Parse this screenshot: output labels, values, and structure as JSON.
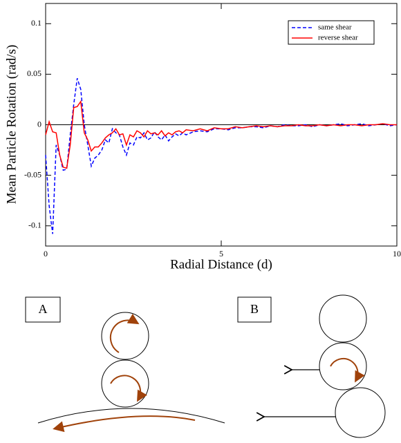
{
  "chart_data": {
    "type": "line",
    "xlabel": "Radial Distance (d)",
    "ylabel": "Mean Particle Rotation (rad/s)",
    "x": [
      0,
      0.1,
      0.2,
      0.3,
      0.4,
      0.5,
      0.6,
      0.7,
      0.8,
      0.9,
      1,
      1.1,
      1.2,
      1.3,
      1.4,
      1.5,
      1.6,
      1.7,
      1.8,
      1.9,
      2,
      2.1,
      2.2,
      2.3,
      2.4,
      2.5,
      2.6,
      2.7,
      2.8,
      2.9,
      3,
      3.1,
      3.2,
      3.3,
      3.4,
      3.5,
      3.6,
      3.7,
      3.8,
      3.9,
      4,
      4.2,
      4.4,
      4.6,
      4.8,
      5,
      5.2,
      5.4,
      5.6,
      5.8,
      6,
      6.2,
      6.4,
      6.6,
      6.8,
      7,
      7.2,
      7.4,
      7.6,
      7.8,
      8,
      8.2,
      8.4,
      8.6,
      8.8,
      9,
      9.2,
      9.4,
      9.6,
      9.8,
      10
    ],
    "series": [
      {
        "name": "same shear",
        "color": "#0000ff",
        "linestyle": "dashed",
        "values": [
          -0.03,
          -0.08,
          -0.108,
          -0.02,
          -0.03,
          -0.045,
          -0.044,
          -0.01,
          0.02,
          0.046,
          0.035,
          0,
          -0.02,
          -0.041,
          -0.033,
          -0.03,
          -0.025,
          -0.015,
          -0.018,
          -0.004,
          -0.008,
          -0.01,
          -0.022,
          -0.03,
          -0.018,
          -0.02,
          -0.012,
          -0.013,
          -0.008,
          -0.015,
          -0.013,
          -0.007,
          -0.012,
          -0.015,
          -0.01,
          -0.016,
          -0.012,
          -0.009,
          -0.011,
          -0.008,
          -0.01,
          -0.007,
          -0.006,
          -0.007,
          -0.004,
          -0.004,
          -0.005,
          -0.003,
          -0.003,
          -0.002,
          -0.002,
          -0.003,
          -0.001,
          -0.002,
          0,
          -0.001,
          -0.001,
          0,
          -0.002,
          0,
          -0.001,
          0,
          0.001,
          -0.001,
          0,
          0.001,
          -0.001,
          0,
          0.001,
          -0.001,
          0
        ]
      },
      {
        "name": "reverse shear",
        "color": "#ff0000",
        "linestyle": "solid",
        "values": [
          -0.01,
          0.003,
          -0.007,
          -0.008,
          -0.03,
          -0.042,
          -0.043,
          -0.02,
          0.017,
          0.018,
          0.023,
          -0.008,
          -0.015,
          -0.026,
          -0.022,
          -0.022,
          -0.018,
          -0.013,
          -0.01,
          -0.008,
          -0.004,
          -0.01,
          -0.009,
          -0.02,
          -0.01,
          -0.012,
          -0.006,
          -0.008,
          -0.012,
          -0.006,
          -0.009,
          -0.008,
          -0.01,
          -0.006,
          -0.011,
          -0.008,
          -0.01,
          -0.007,
          -0.006,
          -0.008,
          -0.005,
          -0.006,
          -0.004,
          -0.006,
          -0.003,
          -0.004,
          -0.004,
          -0.002,
          -0.003,
          -0.002,
          -0.001,
          -0.002,
          -0.001,
          -0.002,
          -0.001,
          -0.001,
          0,
          -0.001,
          -0.001,
          0,
          -0.001,
          0,
          -0.001,
          0,
          0,
          -0.001,
          0,
          0,
          0.001,
          0,
          0
        ]
      }
    ],
    "xlim": [
      0,
      10
    ],
    "xticks": [
      0,
      5,
      10
    ],
    "ylim": [
      -0.12,
      0.12
    ],
    "yticks": [
      -0.1,
      -0.05,
      0,
      0.05,
      0.1
    ],
    "legend": "upper right"
  },
  "diagram": {
    "panels": [
      {
        "label": "A"
      },
      {
        "label": "B"
      }
    ]
  }
}
